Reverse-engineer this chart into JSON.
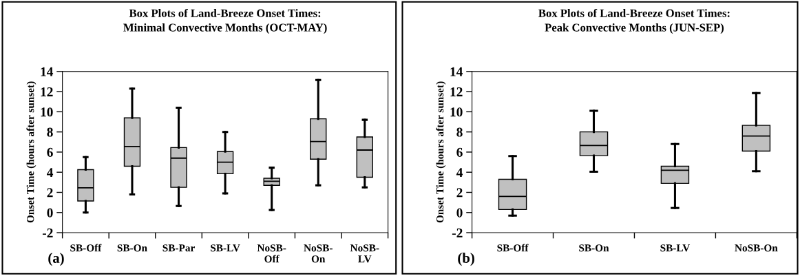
{
  "chart_data": [
    {
      "type": "box",
      "title": "Box Plots of Land-Breeze Onset Times:\nMinimal Convective Months (OCT-MAY)",
      "ylabel": "Onset Time (hours after sunset)",
      "categories": [
        "SB-Off",
        "SB-On",
        "SB-Par",
        "SB-LV",
        "NoSB-\nOff",
        "NoSB-\nOn",
        "NoSB-\nLV"
      ],
      "color": "#c0c0c0",
      "ylim": [
        -2,
        14
      ],
      "yticks": [
        -2,
        0,
        2,
        4,
        6,
        8,
        10,
        12,
        14
      ],
      "grid": false,
      "annotations": [
        "(a)"
      ],
      "boxes": [
        {
          "low": 0,
          "q1": 1.15,
          "median": 2.45,
          "q3": 4.25,
          "high": 5.5
        },
        {
          "low": 1.8,
          "q1": 4.6,
          "median": 6.55,
          "q3": 9.4,
          "high": 12.3
        },
        {
          "low": 0.65,
          "q1": 2.5,
          "median": 5.4,
          "q3": 6.45,
          "high": 10.4
        },
        {
          "low": 1.9,
          "q1": 3.85,
          "median": 5.0,
          "q3": 6.05,
          "high": 8.0
        },
        {
          "low": 0.25,
          "q1": 2.7,
          "median": 3.1,
          "q3": 3.4,
          "high": 4.45
        },
        {
          "low": 2.7,
          "q1": 5.3,
          "median": 7.05,
          "q3": 9.3,
          "high": 13.15
        },
        {
          "low": 2.5,
          "q1": 3.5,
          "median": 6.2,
          "q3": 7.5,
          "high": 9.2
        }
      ]
    },
    {
      "type": "box",
      "title": "Box Plots of Land-Breeze Onset Times:\nPeak Convective Months (JUN-SEP)",
      "ylabel": "Onset Time (hours after sunset)",
      "categories": [
        "SB-Off",
        "SB-On",
        "SB-LV",
        "NoSB-On"
      ],
      "color": "#c0c0c0",
      "ylim": [
        -2,
        14
      ],
      "yticks": [
        -2,
        0,
        2,
        4,
        6,
        8,
        10,
        12,
        14
      ],
      "grid": false,
      "annotations": [
        "(b)"
      ],
      "boxes": [
        {
          "low": -0.3,
          "q1": 0.3,
          "median": 1.6,
          "q3": 3.3,
          "high": 5.6
        },
        {
          "low": 4.05,
          "q1": 5.65,
          "median": 6.65,
          "q3": 8.0,
          "high": 10.1
        },
        {
          "low": 0.45,
          "q1": 2.9,
          "median": 4.2,
          "q3": 4.6,
          "high": 6.8
        },
        {
          "low": 4.1,
          "q1": 6.1,
          "median": 7.6,
          "q3": 8.65,
          "high": 11.85
        }
      ]
    }
  ]
}
